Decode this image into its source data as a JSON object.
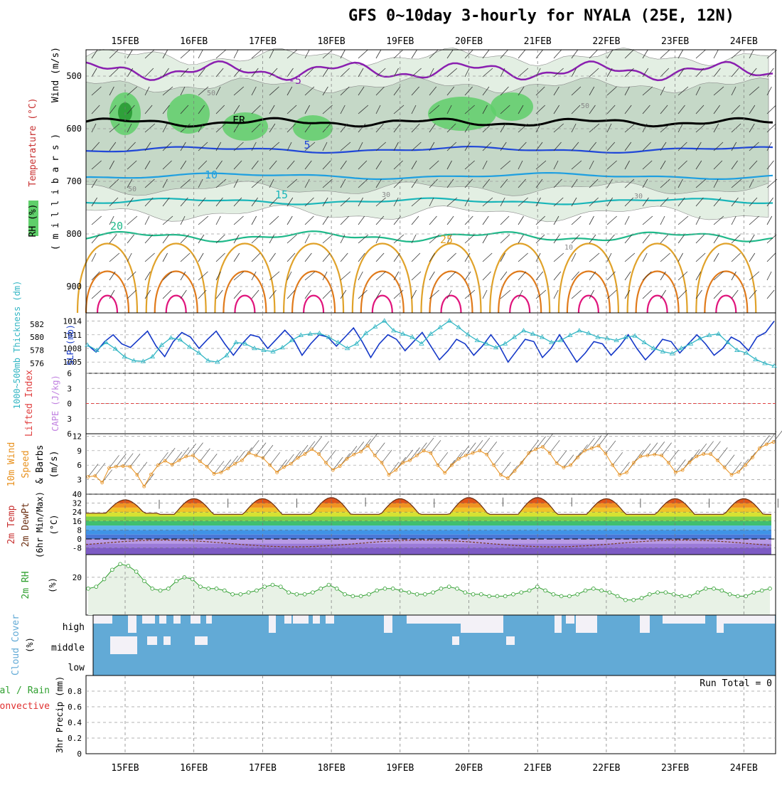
{
  "title": "GFS 0~10day 3-hourly for NYALA (25E, 12N)",
  "dates": [
    "15FEB",
    "16FEB",
    "17FEB",
    "18FEB",
    "19FEB",
    "20FEB",
    "21FEB",
    "22FEB",
    "23FEB",
    "24FEB"
  ],
  "colors": {
    "grid": "#9a9a9a",
    "rh_light": "#e3efe3",
    "rh_mid": "#c5d8c7",
    "rh_green": "#5fcf6a",
    "temp_minus5": "#8a1fb0",
    "temp_fr": "#000000",
    "temp_5": "#2047d8",
    "temp_10": "#1e9fe0",
    "temp_15": "#19b6b9",
    "temp_20": "#1fb98a",
    "temp_25": "#e0a22a",
    "temp_30": "#e07a1a",
    "temp_35": "#e0157c",
    "slp": "#1538c8",
    "thickness": "#33b6c4",
    "lifted": "#e04040",
    "wind10": "#e8901c",
    "rh2m": "#2f9f2f",
    "cloud": "#62aad6",
    "cloud_empty": "#f3f1f7"
  },
  "chart_data": [
    {
      "type": "heatmap",
      "panel": "upper-air",
      "ylabels": [
        "Wind (m/s)",
        "Temperature (°C)",
        "RH (%)",
        "( m i l l i b a r s )"
      ],
      "yticks": [
        500,
        600,
        700,
        800,
        900
      ],
      "ylim": [
        950,
        450
      ],
      "contour_labels": [
        "-5",
        "FR",
        "5",
        "10",
        "15",
        "20",
        "25",
        "10",
        "30",
        "50",
        "50",
        "50",
        "30"
      ],
      "temperature_contours_at_day0": [
        {
          "label": "-5",
          "hPa": 490
        },
        {
          "label": "FR",
          "hPa": 588
        },
        {
          "label": "5",
          "hPa": 640
        },
        {
          "label": "10",
          "hPa": 690
        },
        {
          "label": "15",
          "hPa": 738
        },
        {
          "label": "20",
          "hPa": 805
        }
      ]
    },
    {
      "type": "line",
      "panel": "slp-thickness",
      "ylabel_left": "1000~500mb Thickness (dm)",
      "ylabel_right": "SLP (mb)",
      "yticks_left": [
        576,
        578,
        580,
        582
      ],
      "yticks_right": [
        1005,
        1008,
        1011,
        1014
      ],
      "series": [
        {
          "name": "SLP (mb)",
          "values": [
            1008.8,
            1007.2,
            1009.5,
            1011.0,
            1009.0,
            1008.2,
            1010.0,
            1011.8,
            1008.5,
            1006.2,
            1009.5,
            1011.5,
            1010.5,
            1008.0,
            1010.0,
            1011.8,
            1009.0,
            1006.5,
            1009.0,
            1011.0,
            1010.5,
            1008.0,
            1010.0,
            1012.0,
            1010.0,
            1006.5,
            1009.0,
            1011.0,
            1010.5,
            1008.5,
            1010.5,
            1012.5,
            1009.5,
            1006.0,
            1009.0,
            1011.0,
            1010.0,
            1007.5,
            1009.5,
            1011.5,
            1008.5,
            1005.5,
            1007.5,
            1010.0,
            1009.0,
            1006.5,
            1008.5,
            1011.0,
            1008.5,
            1005.0,
            1007.5,
            1010.0,
            1009.5,
            1006.0,
            1008.0,
            1011.0,
            1008.0,
            1005.0,
            1007.0,
            1009.5,
            1009.0,
            1006.5,
            1008.5,
            1011.0,
            1008.0,
            1005.5,
            1007.5,
            1010.0,
            1009.5,
            1007.0,
            1009.0,
            1011.0,
            1009.0,
            1006.5,
            1008.0,
            1010.5,
            1009.5,
            1007.5,
            1010.5,
            1011.5,
            1014.0
          ]
        },
        {
          "name": "1000~500mb Thickness (dm)",
          "values": [
            578.8,
            578.0,
            579.2,
            578.2,
            577.0,
            576.4,
            576.3,
            577.0,
            578.8,
            579.9,
            579.6,
            578.5,
            577.6,
            576.4,
            576.2,
            577.2,
            579.2,
            579.0,
            578.3,
            578.0,
            577.8,
            578.4,
            579.5,
            580.3,
            580.5,
            580.6,
            580.0,
            579.2,
            578.3,
            579.0,
            580.6,
            581.6,
            582.5,
            581.0,
            580.5,
            580.0,
            579.0,
            580.5,
            581.5,
            582.5,
            581.5,
            580.4,
            579.5,
            579.0,
            578.4,
            579.0,
            580.0,
            581.0,
            580.5,
            580.0,
            579.2,
            579.5,
            580.3,
            581.0,
            580.6,
            580.0,
            579.8,
            579.5,
            580.0,
            580.2,
            579.2,
            578.3,
            577.8,
            577.5,
            578.3,
            579.0,
            579.8,
            580.3,
            580.5,
            579.2,
            578.0,
            577.6,
            576.6,
            576.0,
            575.6
          ]
        }
      ]
    },
    {
      "type": "line",
      "panel": "stability",
      "ylabel_left": "Lifted Index",
      "ylabel_right": "CAPE (J/kg)",
      "yticks": [
        -6,
        -3,
        0,
        3,
        6
      ],
      "reference_line": 0,
      "series": [
        {
          "name": "Lifted Index",
          "values": []
        },
        {
          "name": "CAPE (J/kg)",
          "values": []
        }
      ]
    },
    {
      "type": "line",
      "panel": "wind10m",
      "ylabel": "10m Wind Speed & Barbs (m/s)",
      "yticks": [
        3,
        6,
        9,
        12
      ],
      "ylim": [
        0,
        12
      ],
      "series": [
        {
          "name": "10m Wind Speed",
          "values": [
            3.6,
            3.8,
            2.4,
            5.4,
            5.7,
            5.8,
            5.7,
            4.0,
            1.6,
            4.1,
            6.0,
            6.9,
            6.1,
            7.0,
            7.8,
            8.0,
            6.8,
            5.7,
            4.2,
            4.5,
            5.3,
            6.3,
            7.0,
            8.5,
            8.0,
            7.5,
            6.0,
            4.5,
            5.6,
            6.3,
            7.5,
            8.3,
            9.3,
            8.3,
            6.5,
            5.0,
            5.8,
            7.3,
            8.2,
            8.8,
            10.0,
            8.0,
            6.5,
            4.0,
            5.0,
            6.5,
            7.0,
            8.0,
            9.0,
            8.5,
            6.0,
            4.4,
            6.0,
            7.3,
            8.0,
            8.5,
            9.0,
            8.2,
            6.0,
            4.0,
            3.3,
            4.8,
            6.5,
            8.5,
            9.3,
            9.8,
            8.5,
            6.4,
            5.5,
            6.0,
            7.6,
            9.0,
            9.5,
            10.0,
            8.4,
            6.0,
            4.0,
            4.5,
            6.5,
            7.8,
            8.0,
            8.2,
            8.0,
            6.5,
            4.5,
            5.0,
            6.6,
            7.8,
            8.3,
            8.3,
            7.0,
            5.5,
            4.0,
            4.6,
            6.0,
            7.6,
            9.5,
            10.3,
            10.8
          ]
        }
      ]
    },
    {
      "type": "area",
      "panel": "temp2m",
      "ylabel": "2m Temp 2m DewPt (6hr Min/Max) (°C)",
      "yticks": [
        -8,
        0,
        8,
        16,
        24,
        32,
        40
      ],
      "ylim": [
        -14,
        40
      ],
      "daily_max_temp": [
        35,
        36,
        36,
        37,
        36,
        37,
        37,
        36,
        36,
        36
      ],
      "daily_min_temp": [
        23,
        22,
        22,
        22,
        22,
        22,
        22,
        22,
        22,
        22
      ],
      "dewpoint_typical": [
        -1,
        -8
      ]
    },
    {
      "type": "area",
      "panel": "rh2m",
      "ylabel": "2m RH (%)",
      "yticks": [
        20
      ],
      "ylim": [
        0,
        30
      ],
      "series": [
        {
          "name": "2m RH",
          "values": [
            14,
            15,
            19,
            24,
            27,
            26,
            23,
            18,
            14,
            13,
            14,
            18,
            20,
            19,
            15,
            14,
            14,
            13,
            11,
            11,
            12,
            13,
            15,
            16,
            15,
            12,
            11,
            11,
            12,
            14,
            16,
            14,
            11,
            10,
            10,
            11,
            13,
            14,
            14,
            13,
            12,
            11,
            11,
            12,
            14,
            15,
            14,
            12,
            11,
            11,
            10,
            10,
            10,
            11,
            12,
            13,
            15,
            13,
            11,
            10,
            10,
            11,
            13,
            14,
            13,
            12,
            10,
            8,
            8,
            9,
            11,
            12,
            12,
            11,
            10,
            10,
            12,
            14,
            14,
            13,
            11,
            10,
            10,
            12,
            13,
            14
          ]
        }
      ]
    },
    {
      "type": "heatmap",
      "panel": "cloud",
      "ylabel": "Cloud Cover (%)",
      "rows": [
        "high",
        "middle",
        "low"
      ]
    },
    {
      "type": "bar",
      "panel": "precip",
      "ylabel_left": "Total / Rain Convective",
      "ylabel": "3hr Precip (mm)",
      "yticks": [
        0,
        0.2,
        0.4,
        0.6,
        0.8
      ],
      "ylim": [
        0,
        1
      ],
      "run_total_label": "Run Total = 0",
      "series": [
        {
          "name": "Total / Rain",
          "values": []
        },
        {
          "name": "Convective",
          "values": []
        }
      ]
    }
  ]
}
